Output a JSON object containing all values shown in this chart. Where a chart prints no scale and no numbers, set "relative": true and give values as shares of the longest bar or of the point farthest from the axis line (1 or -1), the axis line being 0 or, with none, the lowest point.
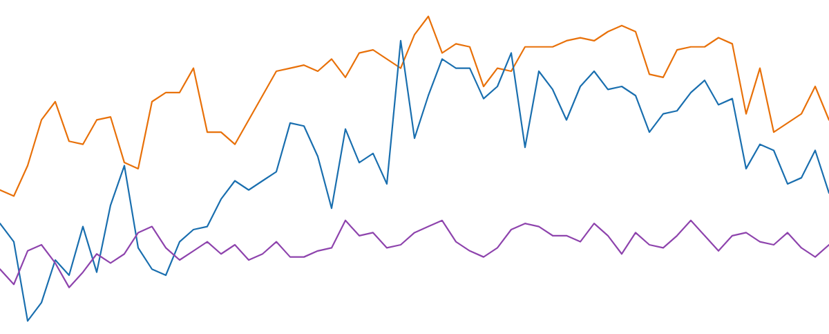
{
  "chart_data": {
    "type": "line",
    "relative": true,
    "categories": [
      null,
      null,
      null,
      null,
      null,
      null,
      null,
      null,
      null,
      null,
      null,
      null,
      null,
      null,
      null,
      null,
      null,
      null,
      null,
      null,
      null,
      null,
      null,
      null,
      null,
      null,
      null,
      null,
      null,
      null,
      null,
      null,
      null,
      null,
      null,
      null,
      null,
      null,
      null,
      null,
      null,
      null,
      null,
      null,
      null,
      null,
      null,
      null,
      null,
      null,
      null,
      null,
      null,
      null,
      null,
      null,
      null,
      null,
      null,
      null,
      null
    ],
    "series": [
      {
        "color": "#e8710a",
        "values": [
          0.43,
          0.41,
          0.51,
          0.66,
          0.72,
          0.59,
          0.58,
          0.66,
          0.67,
          0.52,
          0.5,
          0.72,
          0.75,
          0.75,
          0.83,
          0.62,
          0.62,
          0.58,
          0.66,
          0.74,
          0.82,
          0.83,
          0.84,
          0.82,
          0.86,
          0.8,
          0.88,
          0.89,
          0.86,
          0.83,
          0.94,
          1.0,
          0.88,
          0.91,
          0.9,
          0.77,
          0.83,
          0.82,
          0.9,
          0.9,
          0.9,
          0.92,
          0.93,
          0.92,
          0.95,
          0.97,
          0.95,
          0.81,
          0.8,
          0.89,
          0.9,
          0.9,
          0.93,
          0.91,
          0.68,
          0.83,
          0.62,
          0.65,
          0.68,
          0.77,
          0.66
        ]
      },
      {
        "color": "#1a6faf",
        "values": [
          0.32,
          0.26,
          0.0,
          0.06,
          0.2,
          0.15,
          0.31,
          0.16,
          0.38,
          0.51,
          0.24,
          0.17,
          0.15,
          0.26,
          0.3,
          0.31,
          0.4,
          0.46,
          0.43,
          0.46,
          0.49,
          0.65,
          0.64,
          0.54,
          0.37,
          0.63,
          0.52,
          0.55,
          0.45,
          0.92,
          0.6,
          0.74,
          0.86,
          0.83,
          0.83,
          0.73,
          0.77,
          0.88,
          0.57,
          0.82,
          0.76,
          0.66,
          0.77,
          0.82,
          0.76,
          0.77,
          0.74,
          0.62,
          0.68,
          0.69,
          0.75,
          0.79,
          0.71,
          0.73,
          0.5,
          0.58,
          0.56,
          0.45,
          0.47,
          0.56,
          0.42
        ]
      },
      {
        "color": "#8e44ad",
        "values": [
          0.17,
          0.12,
          0.23,
          0.25,
          0.19,
          0.11,
          0.16,
          0.22,
          0.19,
          0.22,
          0.29,
          0.31,
          0.24,
          0.2,
          0.23,
          0.26,
          0.22,
          0.25,
          0.2,
          0.22,
          0.26,
          0.21,
          0.21,
          0.23,
          0.24,
          0.33,
          0.28,
          0.29,
          0.24,
          0.25,
          0.29,
          0.31,
          0.33,
          0.26,
          0.23,
          0.21,
          0.24,
          0.3,
          0.32,
          0.31,
          0.28,
          0.28,
          0.26,
          0.32,
          0.28,
          0.22,
          0.29,
          0.25,
          0.24,
          0.28,
          0.33,
          0.28,
          0.23,
          0.28,
          0.29,
          0.26,
          0.25,
          0.29,
          0.24,
          0.21,
          0.25
        ]
      }
    ]
  }
}
